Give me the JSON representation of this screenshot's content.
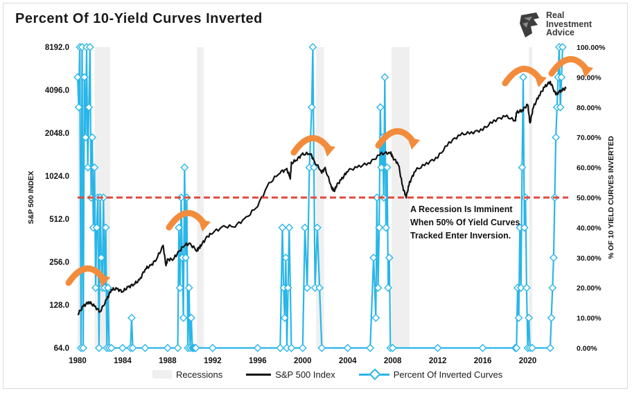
{
  "title": "Percent Of 10-Yield Curves Inverted",
  "logo": {
    "line1": "Real",
    "line2": "Investment",
    "line3": "Advice"
  },
  "annotation": {
    "line1": "A Recession Is Imminent",
    "line2": "When 50% Of Yield Curves",
    "line3": "Tracked Enter Inversion."
  },
  "legend": {
    "recessions": "Recessions",
    "sp500": "S&P 500 Index",
    "inverted": "Percent Of Inverted Curves"
  },
  "colors": {
    "sp500": "#111111",
    "inverted": "#29b6e8",
    "recession": "#efefef",
    "threshold": "#e0483e",
    "arrow": "#f28c3c"
  },
  "chart_data": {
    "type": "line",
    "title": "Percent Of 10-Yield Curves Inverted",
    "xlabel": "",
    "ylabel_left": "S&P 500 INDEX",
    "ylabel_right": "% OF 10 YIELD CURVES INVERTED",
    "xlim": [
      1980,
      2023.6
    ],
    "y_left_scale": "log2",
    "y_left_lim": [
      64,
      8192
    ],
    "y_left_ticks": [
      "64.0",
      "128.0",
      "256.0",
      "512.0",
      "1024.0",
      "2048.0",
      "4096.0",
      "8192.0"
    ],
    "y_right_lim": [
      0,
      100
    ],
    "y_right_ticks": [
      "0.00%",
      "10.00%",
      "20.00%",
      "30.00%",
      "40.00%",
      "50.00%",
      "60.00%",
      "70.00%",
      "80.00%",
      "90.00%",
      "100.00%"
    ],
    "x_ticks": [
      "1980",
      "1984",
      "1988",
      "1992",
      "1996",
      "2000",
      "2004",
      "2008",
      "2012",
      "2016",
      "2020"
    ],
    "recessions": [
      [
        1980.0,
        1980.5
      ],
      [
        1981.5,
        1982.9
      ],
      [
        1990.6,
        1991.2
      ],
      [
        2001.2,
        2001.9
      ],
      [
        2007.9,
        2009.5
      ],
      [
        2020.1,
        2020.4
      ]
    ],
    "threshold_pct": 50,
    "series": [
      {
        "name": "S&P 500 Index",
        "axis": "left",
        "x": [
          1980,
          1980.5,
          1981,
          1981.5,
          1982,
          1982.6,
          1983,
          1983.5,
          1984,
          1984.5,
          1985,
          1985.5,
          1986,
          1986.5,
          1987,
          1987.6,
          1987.85,
          1988,
          1988.5,
          1989,
          1989.5,
          1990,
          1990.6,
          1990.8,
          1991,
          1991.5,
          1992,
          1993,
          1994,
          1995,
          1996,
          1997,
          1998,
          1998.6,
          1998.9,
          1999,
          1999.5,
          2000,
          2000.7,
          2001,
          2001.7,
          2002,
          2002.6,
          2002.8,
          2003,
          2003.5,
          2004,
          2005,
          2006,
          2007,
          2007.8,
          2008,
          2008.5,
          2008.9,
          2009.2,
          2009.5,
          2010,
          2011,
          2012,
          2013,
          2014,
          2015,
          2016,
          2017,
          2018,
          2018.9,
          2019,
          2019.5,
          2020,
          2020.2,
          2020.5,
          2021,
          2021.5,
          2022,
          2022.5,
          2023,
          2023.4
        ],
        "values": [
          110,
          125,
          135,
          125,
          115,
          140,
          165,
          165,
          160,
          170,
          180,
          190,
          230,
          240,
          270,
          330,
          245,
          265,
          270,
          300,
          340,
          340,
          310,
          320,
          340,
          380,
          415,
          450,
          460,
          520,
          640,
          900,
          1100,
          1130,
          1000,
          1250,
          1350,
          1450,
          1480,
          1300,
          1100,
          1150,
          850,
          800,
          880,
          980,
          1120,
          1190,
          1280,
          1470,
          1500,
          1380,
          1250,
          850,
          735,
          920,
          1120,
          1250,
          1390,
          1750,
          2000,
          2060,
          2170,
          2500,
          2700,
          2500,
          2850,
          2950,
          3250,
          2400,
          3100,
          3750,
          4300,
          4700,
          3800,
          4100,
          4200
        ]
      },
      {
        "name": "Percent Of Inverted Curves",
        "axis": "right",
        "x": [
          1980,
          1980.1,
          1980.2,
          1980.3,
          1980.4,
          1980.5,
          1980.6,
          1980.7,
          1980.8,
          1980.9,
          1981,
          1981.1,
          1981.2,
          1981.3,
          1981.4,
          1981.5,
          1981.6,
          1981.7,
          1981.8,
          1981.9,
          1982,
          1982.1,
          1982.2,
          1982.3,
          1982.4,
          1982.5,
          1982.6,
          1982.7,
          1982.8,
          1983,
          1984,
          1984.7,
          1984.8,
          1984.9,
          1986,
          1988,
          1988.9,
          1989.0,
          1989.1,
          1989.2,
          1989.3,
          1989.4,
          1989.5,
          1989.6,
          1989.7,
          1989.8,
          1989.9,
          1990.0,
          1990.1,
          1990.2,
          1990.3,
          1990.4,
          1990.5,
          1992,
          1996,
          1998.0,
          1998.2,
          1998.3,
          1998.4,
          1998.5,
          1998.6,
          1998.7,
          1998.8,
          1999,
          2000.0,
          2000.2,
          2000.4,
          2000.6,
          2000.8,
          2000.9,
          2001.0,
          2001.1,
          2001.3,
          2001.5,
          2001.7,
          2004,
          2006.0,
          2006.3,
          2006.5,
          2006.6,
          2006.7,
          2006.8,
          2006.9,
          2007.0,
          2007.1,
          2007.2,
          2007.3,
          2007.4,
          2007.5,
          2007.6,
          2007.7,
          2007.8,
          2008,
          2012,
          2016,
          2018.9,
          2019.0,
          2019.1,
          2019.2,
          2019.3,
          2019.4,
          2019.5,
          2019.6,
          2019.7,
          2019.8,
          2019.9,
          2020.0,
          2020.1,
          2020.2,
          2020.4,
          2022.0,
          2022.1,
          2022.2,
          2022.3,
          2022.4,
          2022.5,
          2022.6,
          2022.7,
          2022.8,
          2022.9,
          2023.0,
          2023.1
        ],
        "values": [
          90,
          80,
          100,
          0,
          100,
          0,
          90,
          70,
          100,
          60,
          80,
          100,
          50,
          70,
          40,
          60,
          20,
          40,
          50,
          0,
          50,
          30,
          20,
          50,
          20,
          40,
          0,
          20,
          0,
          0,
          0,
          0,
          10,
          0,
          0,
          0,
          0,
          40,
          20,
          50,
          30,
          10,
          60,
          30,
          50,
          0,
          20,
          0,
          10,
          0,
          0,
          0,
          0,
          0,
          0,
          0,
          40,
          20,
          10,
          30,
          0,
          20,
          40,
          0,
          0,
          40,
          20,
          60,
          80,
          100,
          60,
          20,
          40,
          20,
          0,
          0,
          0,
          30,
          10,
          50,
          20,
          40,
          80,
          60,
          70,
          50,
          90,
          40,
          60,
          20,
          30,
          0,
          0,
          0,
          0,
          0,
          0,
          20,
          10,
          40,
          20,
          60,
          90,
          40,
          50,
          20,
          0,
          10,
          0,
          0,
          0,
          10,
          20,
          30,
          50,
          70,
          80,
          90,
          100,
          80,
          90,
          100
        ]
      }
    ]
  }
}
